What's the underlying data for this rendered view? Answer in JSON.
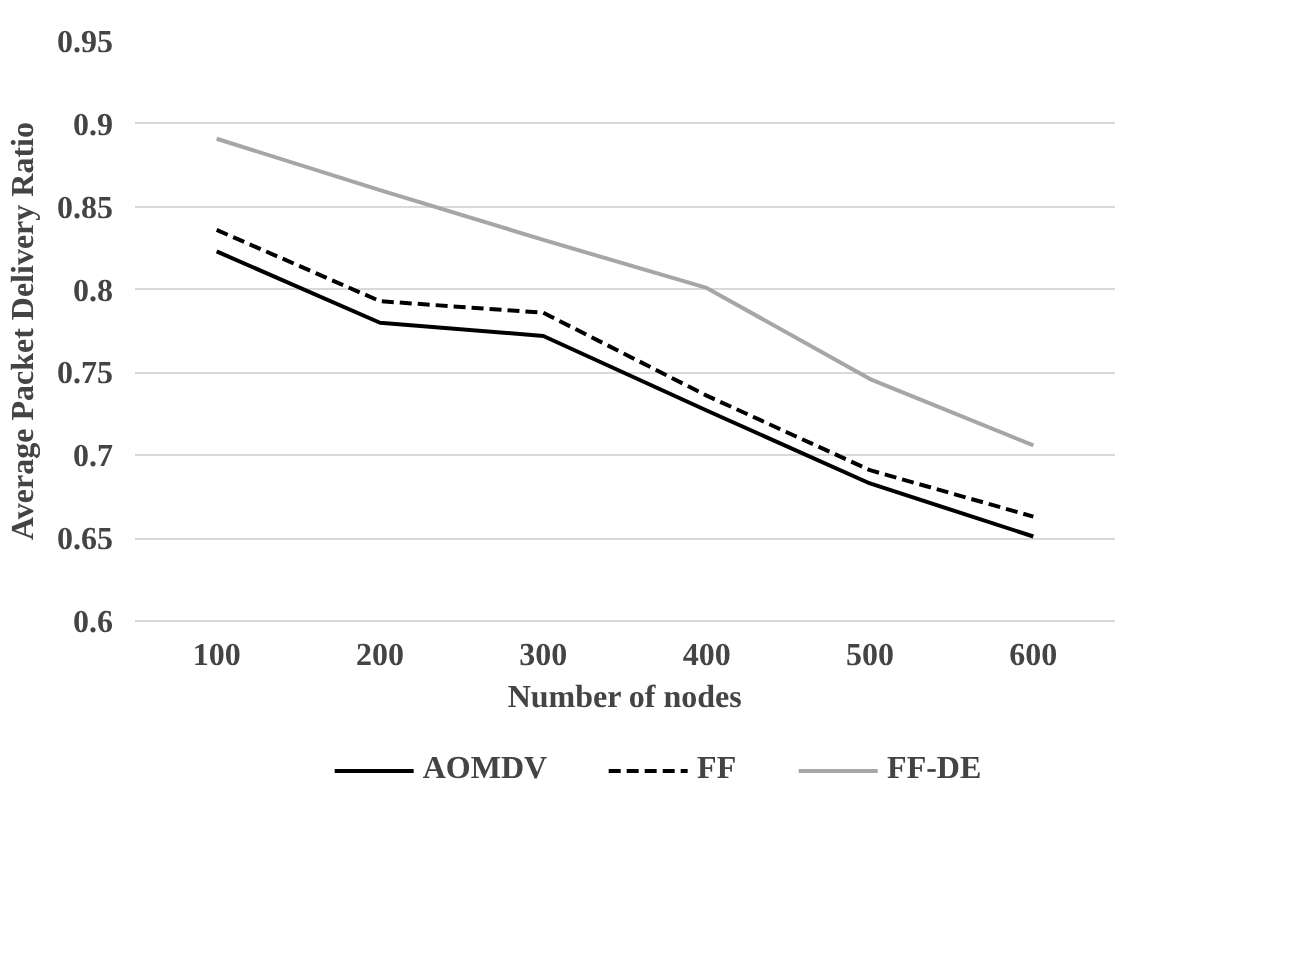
{
  "chart_data": {
    "type": "line",
    "xlabel": "Number of nodes",
    "ylabel": "Average Packet Delivery Ratio",
    "categories": [
      "100",
      "200",
      "300",
      "400",
      "500",
      "600"
    ],
    "series": [
      {
        "name": "AOMDV",
        "color": "#000000",
        "line_style": "solid",
        "values": [
          0.823,
          0.78,
          0.772,
          0.727,
          0.683,
          0.651
        ]
      },
      {
        "name": "FF",
        "color": "#000000",
        "line_style": "dashed",
        "values": [
          0.836,
          0.793,
          0.786,
          0.736,
          0.691,
          0.663
        ]
      },
      {
        "name": "FF-DE",
        "color": "#a6a6a6",
        "line_style": "solid",
        "values": [
          0.891,
          0.86,
          0.83,
          0.801,
          0.746,
          0.706
        ]
      }
    ],
    "ylim": [
      0.6,
      0.95
    ],
    "yticks": [
      0.6,
      0.65,
      0.7,
      0.75,
      0.8,
      0.85,
      0.9,
      0.95
    ],
    "grid": "y",
    "legend": "bottom",
    "marker": "none"
  }
}
